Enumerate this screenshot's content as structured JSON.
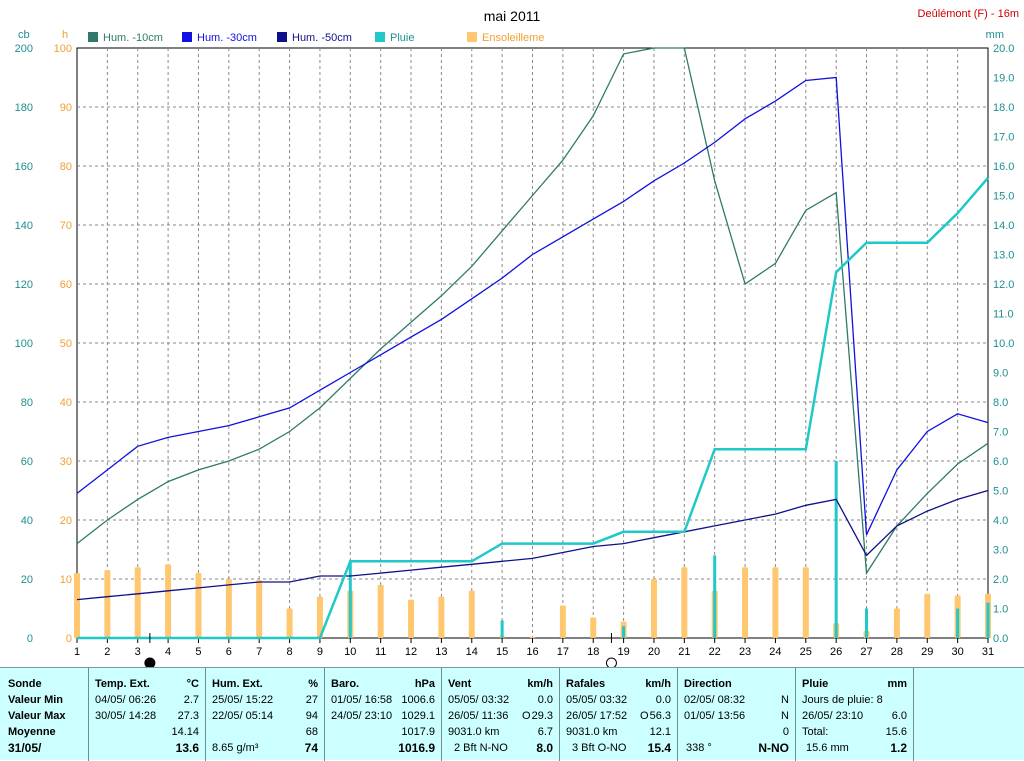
{
  "header": {
    "title": "mai 2011",
    "station": "Deûlémont (F) - 16m"
  },
  "axes": {
    "left1_unit": "cb",
    "left2_unit": "h",
    "right_unit": "mm",
    "left1_ticks": [
      "0",
      "20",
      "40",
      "60",
      "80",
      "100",
      "120",
      "140",
      "160",
      "180",
      "200"
    ],
    "left2_ticks": [
      "0",
      "10",
      "20",
      "30",
      "40",
      "50",
      "60",
      "70",
      "80",
      "90",
      "100"
    ],
    "right_ticks": [
      "0.0",
      "1.0",
      "2.0",
      "3.0",
      "4.0",
      "5.0",
      "6.0",
      "7.0",
      "8.0",
      "9.0",
      "10.0",
      "11.0",
      "12.0",
      "13.0",
      "14.0",
      "15.0",
      "16.0",
      "17.0",
      "18.0",
      "19.0",
      "20.0"
    ],
    "x_ticks": [
      "1",
      "2",
      "3",
      "4",
      "5",
      "6",
      "7",
      "8",
      "9",
      "10",
      "11",
      "12",
      "13",
      "14",
      "15",
      "16",
      "17",
      "18",
      "19",
      "20",
      "21",
      "22",
      "23",
      "24",
      "25",
      "26",
      "27",
      "28",
      "29",
      "30",
      "31"
    ]
  },
  "colors": {
    "hum10": "#2f7a6a",
    "hum30": "#1010e0",
    "hum50": "#10108a",
    "pluie": "#20c8c8",
    "soleil": "#ffc870"
  },
  "chart_data": {
    "type": "line",
    "title": "mai 2011",
    "x": [
      1,
      2,
      3,
      4,
      5,
      6,
      7,
      8,
      9,
      10,
      11,
      12,
      13,
      14,
      15,
      16,
      17,
      18,
      19,
      20,
      21,
      22,
      23,
      24,
      25,
      26,
      27,
      28,
      29,
      30,
      31
    ],
    "legend_placement": "top-left",
    "series": [
      {
        "name": "Hum. -10cm",
        "unit": "cb",
        "values": [
          32,
          40,
          47,
          53,
          57,
          60,
          64,
          70,
          78,
          88,
          98,
          107,
          116,
          126,
          138,
          150,
          162,
          177,
          198,
          200,
          200,
          155,
          120,
          127,
          145,
          151,
          22,
          38,
          49,
          59,
          66
        ]
      },
      {
        "name": "Hum. -30cm",
        "unit": "cb",
        "values": [
          49,
          57,
          65,
          68,
          70,
          72,
          75,
          78,
          84,
          90,
          96,
          102,
          108,
          115,
          122,
          130,
          136,
          142,
          148,
          155,
          161,
          168,
          176,
          182,
          189,
          190,
          35,
          57,
          70,
          76,
          73
        ]
      },
      {
        "name": "Hum. -50cm",
        "unit": "cb",
        "values": [
          13,
          14,
          15,
          16,
          17,
          18,
          19,
          19,
          21,
          21,
          22,
          23,
          24,
          25,
          26,
          27,
          29,
          31,
          32,
          34,
          36,
          38,
          40,
          42,
          45,
          47,
          28,
          38,
          43,
          47,
          50
        ]
      },
      {
        "name": "Pluie",
        "unit": "mm",
        "cumulative": true,
        "values": [
          0,
          0,
          0,
          0,
          0,
          0,
          0,
          0,
          0,
          2.6,
          2.6,
          2.6,
          2.6,
          2.6,
          3.2,
          3.2,
          3.2,
          3.2,
          3.6,
          3.6,
          3.6,
          6.4,
          6.4,
          6.4,
          6.4,
          12.4,
          13.4,
          13.4,
          13.4,
          14.4,
          15.6
        ],
        "daily": [
          0,
          0,
          0,
          0,
          0,
          0,
          0,
          0,
          0,
          2.6,
          0,
          0,
          0,
          0,
          0.6,
          0,
          0,
          0,
          0.4,
          0,
          0,
          2.8,
          0,
          0,
          0,
          6.0,
          1.0,
          0,
          0,
          1.0,
          1.2
        ]
      },
      {
        "name": "Ensoleilleme",
        "unit": "h",
        "type": "bar",
        "values": [
          11,
          11.5,
          12,
          12.5,
          11,
          10,
          9.8,
          5,
          7,
          8,
          9,
          6.5,
          7,
          8,
          0.4,
          0.2,
          5.5,
          3.5,
          2.8,
          10,
          12,
          8,
          12,
          12,
          12,
          2.5,
          1.2,
          5,
          7.5,
          7.2,
          7.5
        ]
      }
    ],
    "ylim_cb": [
      0,
      200
    ],
    "ylim_h": [
      0,
      100
    ],
    "ylim_mm": [
      0,
      20
    ],
    "xlim": [
      1,
      31
    ],
    "grid": true,
    "moon_markers": [
      {
        "x": 3.4,
        "phase": "new"
      },
      {
        "x": 18.6,
        "phase": "full"
      }
    ]
  },
  "footer": {
    "labels": {
      "sonde": "Sonde",
      "min": "Valeur Min",
      "max": "Valeur Max",
      "moy": "Moyenne",
      "date": "31/05/"
    },
    "temp": {
      "head": "Temp. Ext.",
      "unit": "°C",
      "min_t": "04/05/ 06:26",
      "min_v": "2.7",
      "max_t": "30/05/ 14:28",
      "max_v": "27.3",
      "moy_v": "14.14",
      "cur_v": "13.6"
    },
    "hum": {
      "head": "Hum. Ext.",
      "unit": "%",
      "min_t": "25/05/ 15:22",
      "min_v": "27",
      "max_t": "22/05/ 05:14",
      "max_v": "94",
      "moy_v": "68",
      "cur_l": "8.65 g/m³",
      "cur_v": "74"
    },
    "baro": {
      "head": "Baro.",
      "unit": "hPa",
      "min_t": "01/05/ 16:58",
      "min_v": "1006.6",
      "max_t": "24/05/ 23:10",
      "max_v": "1029.1",
      "moy_v": "1017.9",
      "cur_v": "1016.9"
    },
    "vent": {
      "head": "Vent",
      "unit": "km/h",
      "min_t": "05/05/ 03:32",
      "min_v": "0.0",
      "max_t": "26/05/ 11:36",
      "max_d": "O",
      "max_v": "29.3",
      "moy_l": "9031.0 km",
      "moy_v": "6.7",
      "cur_l": "2 Bft N-NO",
      "cur_v": "8.0"
    },
    "rafales": {
      "head": "Rafales",
      "unit": "km/h",
      "min_t": "05/05/ 03:32",
      "min_v": "0.0",
      "max_t": "26/05/ 17:52",
      "max_d": "O",
      "max_v": "56.3",
      "moy_l": "9031.0 km",
      "moy_v": "12.1",
      "cur_l": "3 Bft O-NO",
      "cur_v": "15.4"
    },
    "direction": {
      "head": "Direction",
      "min_t": "02/05/ 08:32",
      "min_v": "N",
      "max_t": "01/05/ 13:56",
      "max_v": "N",
      "moy_v": "0",
      "cur_l": "338 °",
      "cur_v": "N-NO"
    },
    "pluie": {
      "head": "Pluie",
      "unit": "mm",
      "jours": "Jours de pluie: 8",
      "max_t": "26/05/ 23:10",
      "max_v": "6.0",
      "total_l": "Total:",
      "total_v": "15.6",
      "cur_l": "15.6 mm",
      "cur_v": "1.2"
    }
  }
}
